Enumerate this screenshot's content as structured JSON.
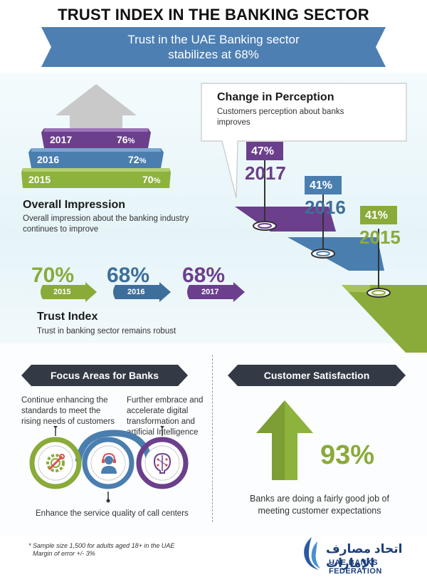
{
  "header": {
    "title": "TRUST INDEX IN THE BANKING SECTOR",
    "banner_line1": "Trust in the UAE Banking sector",
    "banner_line2": "stabilizes at 68%"
  },
  "overall_impression": {
    "bars": [
      {
        "year": "2017",
        "value": "76",
        "unit": "%",
        "color": "#6b3f8c"
      },
      {
        "year": "2016",
        "value": "72",
        "unit": "%",
        "color": "#4a7eaf"
      },
      {
        "year": "2015",
        "value": "70",
        "unit": "%",
        "color": "#8db33c"
      }
    ],
    "title": "Overall Impression",
    "description_line1": "Overall impression about the banking industry",
    "description_line2": "continues to improve"
  },
  "trust_index": {
    "items": [
      {
        "value": "70%",
        "year": "2015",
        "color": "#8aaa3a"
      },
      {
        "value": "68%",
        "year": "2016",
        "color": "#3e6e9b"
      },
      {
        "value": "68%",
        "year": "2017",
        "color": "#6b3f8c"
      }
    ],
    "title": "Trust Index",
    "description": "Trust in banking sector remains robust"
  },
  "change_in_perception": {
    "title": "Change in Perception",
    "description_line1": "Customers perception about banks",
    "description_line2": "improves",
    "items": [
      {
        "value": "47%",
        "year": "2017",
        "color": "#6b3f8c"
      },
      {
        "value": "41%",
        "year": "2016",
        "color": "#3e6e9b"
      },
      {
        "value": "41%",
        "year": "2015",
        "color": "#8aaa3a"
      }
    ]
  },
  "focus_areas": {
    "heading": "Focus Areas for Banks",
    "item1_line1": "Continue enhancing the",
    "item1_line2": "standards to meet the",
    "item1_line3": "rising needs of customers",
    "item2_line1": "Further embrace and",
    "item2_line2": "accelerate digital",
    "item2_line3": "transformation and",
    "item2_line4": "artificial Intelligence",
    "item3": "Enhance the service quality of call centers",
    "icons": [
      "gear-wrench-icon",
      "call-center-agent-icon",
      "artificial-intelligence-icon"
    ]
  },
  "customer_satisfaction": {
    "heading": "Customer Satisfaction",
    "value": "93%",
    "description_line1": "Banks are doing a fairly good job of",
    "description_line2": "meeting customer expectations"
  },
  "footer": {
    "note_line1": "* Sample size 1,500 for adults aged 18+ in the UAE",
    "note_line2": "Margin of error +/- 3%",
    "logo_arabic": "اتحاد مصارف الإمارات",
    "logo_english": "UAE BANKS FEDERATION"
  },
  "colors": {
    "purple": "#6b3f8c",
    "blue": "#3e6e9b",
    "green": "#8aaa3a",
    "dark": "#333a45"
  }
}
